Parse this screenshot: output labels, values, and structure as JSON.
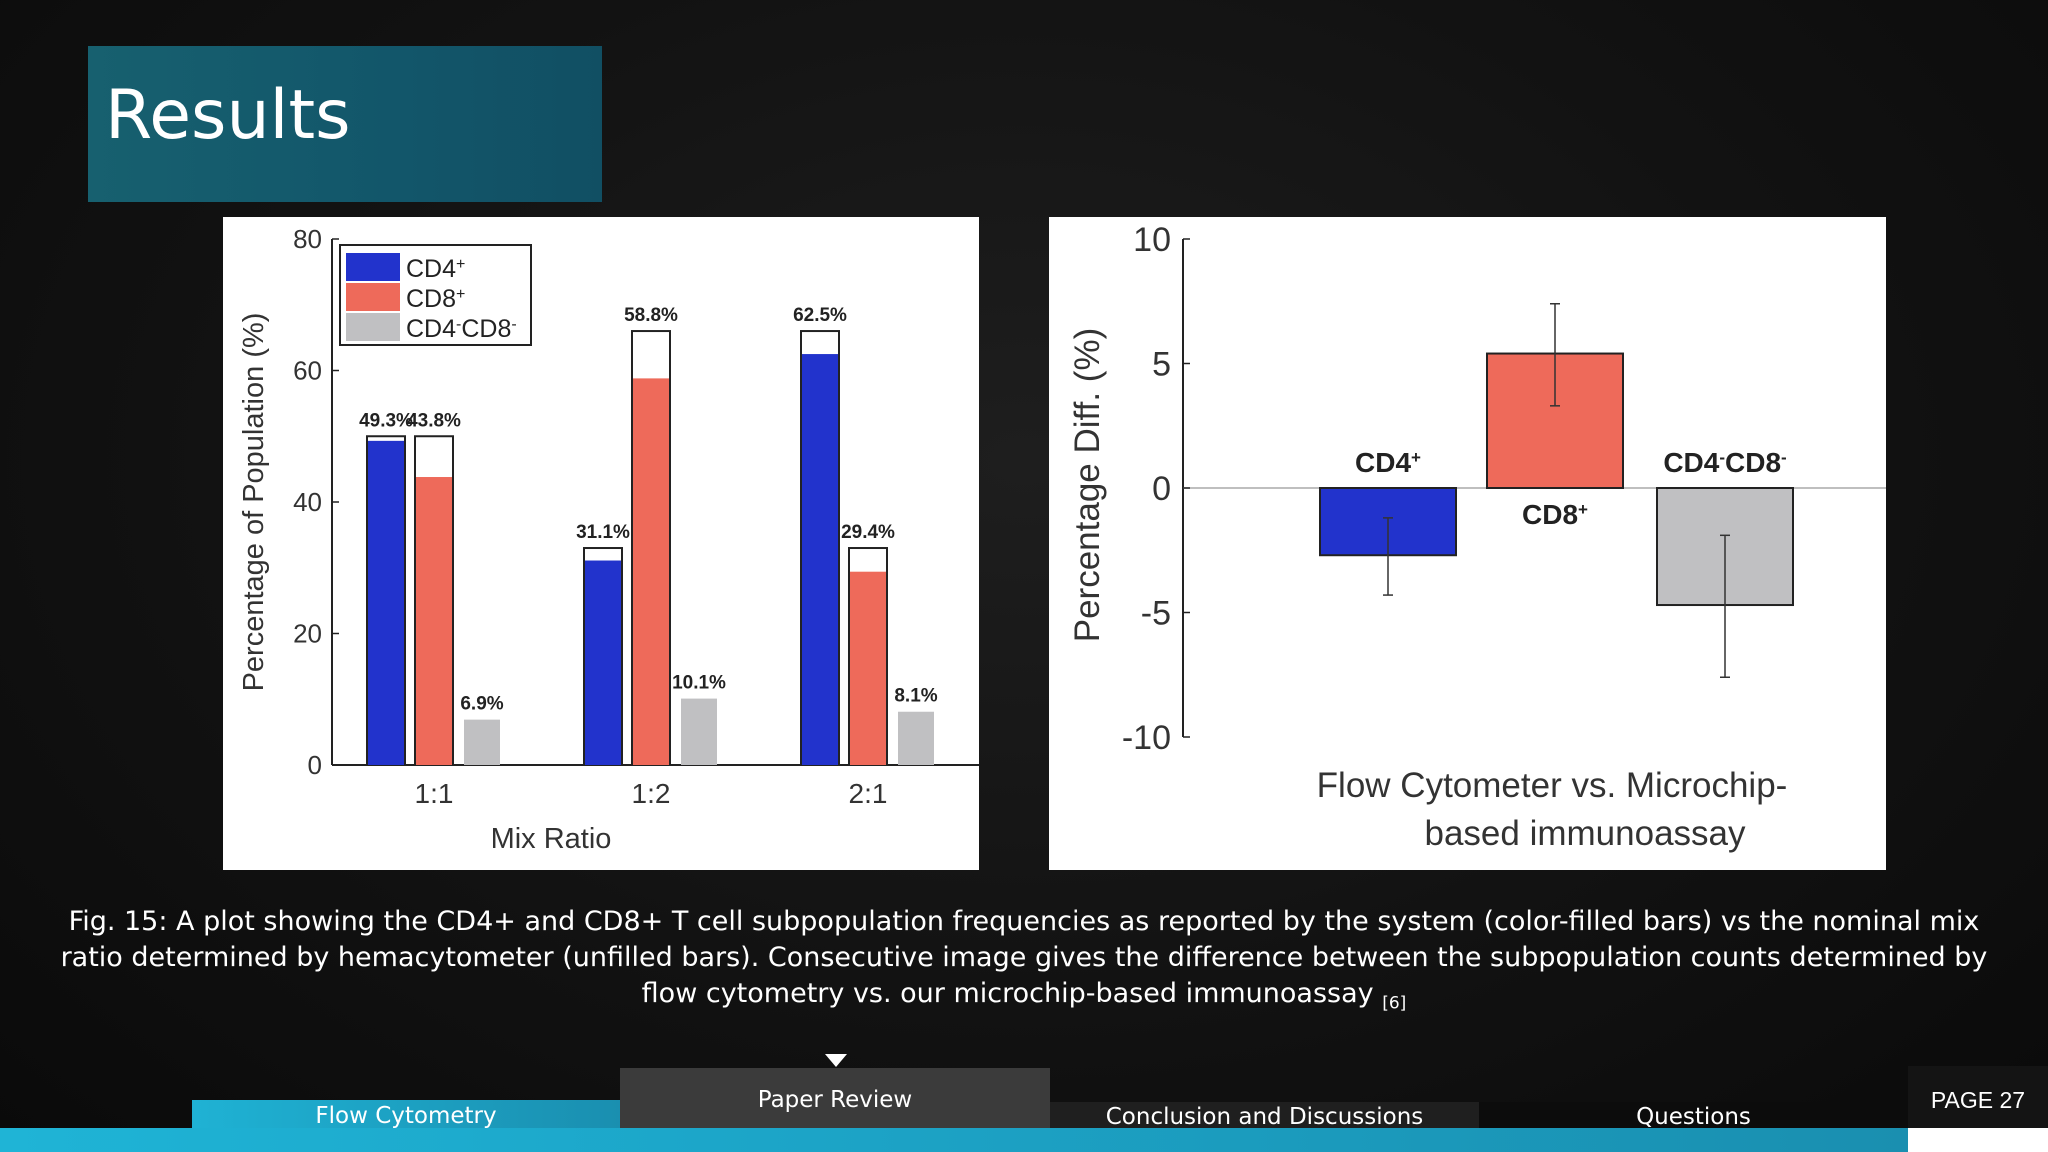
{
  "slide": {
    "title": "Results",
    "caption": "Fig. 15: A plot showing the CD4+ and CD8+ T cell subpopulation frequencies as reported by the system (color-filled bars) vs the nominal mix ratio determined by hemacytometer (unfilled bars). Consecutive image gives the difference between the subpopulation counts determined by flow cytometry vs. our microchip-based immunoassay",
    "caption_ref": "[6]",
    "page_label": "PAGE 27"
  },
  "nav": {
    "tabs": [
      {
        "label": "Flow Cytometry"
      },
      {
        "label": "Paper Review"
      },
      {
        "label": "Conclusion and Discussions"
      },
      {
        "label": "Questions"
      }
    ],
    "active": 1
  },
  "colors": {
    "cd4": "#2233cc",
    "cd8": "#ee6a5a",
    "dn": "#c0c0c2"
  },
  "chart_data": [
    {
      "type": "bar",
      "xlabel": "Mix Ratio",
      "ylabel": "Percentage of Population (%)",
      "ylim": [
        0,
        80
      ],
      "yticks": [
        0,
        20,
        40,
        60,
        80
      ],
      "categories": [
        "1:1",
        "1:2",
        "2:1"
      ],
      "legend_position": "top-left",
      "series": [
        {
          "name": "CD4",
          "sup": "+",
          "values": [
            49.3,
            31.1,
            62.5
          ],
          "nominal": [
            50,
            33,
            66
          ],
          "labels": [
            "49.3%",
            "31.1%",
            "62.5%"
          ]
        },
        {
          "name": "CD8",
          "sup": "+",
          "values": [
            43.8,
            58.8,
            29.4
          ],
          "nominal": [
            50,
            66,
            33
          ],
          "labels": [
            "43.8%",
            "58.8%",
            "29.4%"
          ]
        },
        {
          "name": "CD4",
          "sup": "-",
          "name2": "CD8",
          "sup2": "-",
          "values": [
            6.9,
            10.1,
            8.1
          ],
          "nominal": [
            null,
            null,
            null
          ],
          "labels": [
            "6.9%",
            "10.1%",
            "8.1%"
          ]
        }
      ]
    },
    {
      "type": "bar",
      "xlabel": "Flow Cytometer vs. Microchip-based immunoassay",
      "xlabel_lines": [
        "Flow Cytometer vs. Microchip-",
        "based immunoassay"
      ],
      "ylabel": "Percentage Diff. (%)",
      "ylim": [
        -10,
        10
      ],
      "yticks": [
        -10,
        -5,
        0,
        5,
        10
      ],
      "ytick_labels": [
        "-10",
        "-5",
        "0",
        "5",
        "10"
      ],
      "bars": [
        {
          "label": "CD4",
          "sup": "+",
          "value": -2.7,
          "err_low": -4.3,
          "err_high": -1.2
        },
        {
          "label": "CD8",
          "sup": "+",
          "value": 5.4,
          "err_low": 3.3,
          "err_high": 7.4
        },
        {
          "label": "CD4",
          "sup": "-",
          "label2": "CD8",
          "sup2": "-",
          "value": -4.7,
          "err_low": -7.6,
          "err_high": -1.9
        }
      ]
    }
  ]
}
